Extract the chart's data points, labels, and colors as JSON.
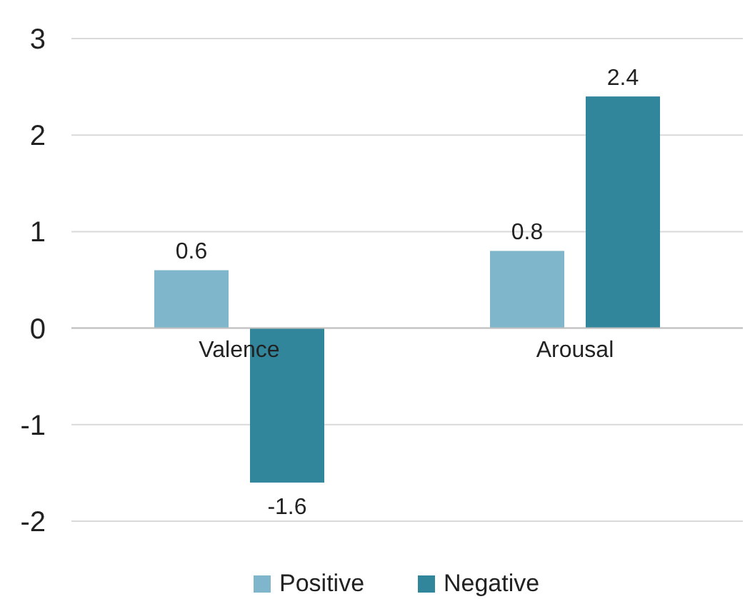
{
  "chart_data": {
    "type": "bar",
    "categories": [
      "Valence",
      "Arousal"
    ],
    "series": [
      {
        "name": "Positive",
        "color": "#7fb6cb",
        "values": [
          0.6,
          0.8
        ]
      },
      {
        "name": "Negative",
        "color": "#31869b",
        "values": [
          -1.6,
          2.4
        ]
      }
    ],
    "ylim": [
      -2,
      3
    ],
    "yticks": [
      -2,
      -1,
      0,
      1,
      2,
      3
    ],
    "grid": "y",
    "legend": "bottom",
    "data_labels": true
  }
}
